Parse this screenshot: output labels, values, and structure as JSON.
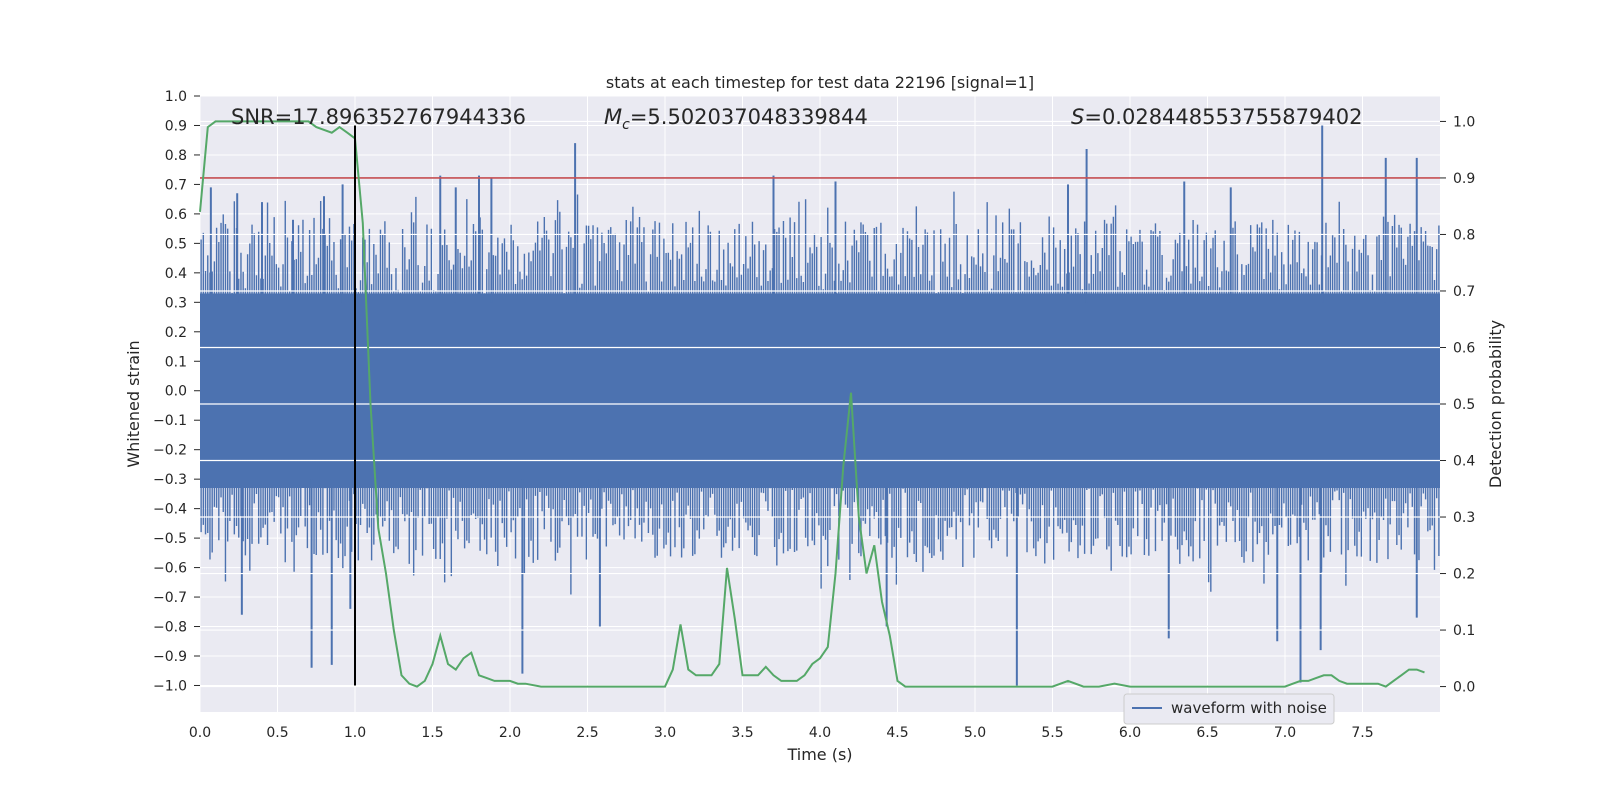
{
  "chart_data": {
    "type": "line",
    "title": "stats at each timestep for test data 22196 [signal=1]",
    "xlabel": "Time (s)",
    "ylabel": "Whitened strain",
    "y2label": "Detection probability",
    "xlim": [
      0.0,
      8.0
    ],
    "ylim": [
      -1.09,
      1.0
    ],
    "y2lim": [
      -0.045,
      1.045
    ],
    "xticks": [
      0.0,
      0.5,
      1.0,
      1.5,
      2.0,
      2.5,
      3.0,
      3.5,
      4.0,
      4.5,
      5.0,
      5.5,
      6.0,
      6.5,
      7.0,
      7.5
    ],
    "xtick_labels": [
      "0.0",
      "0.5",
      "1.0",
      "1.5",
      "2.0",
      "2.5",
      "3.0",
      "3.5",
      "4.0",
      "4.5",
      "5.0",
      "5.5",
      "6.0",
      "6.5",
      "7.0",
      "7.5"
    ],
    "yticks": [
      1.0,
      0.9,
      0.8,
      0.7,
      0.6,
      0.5,
      0.4,
      0.3,
      0.2,
      0.1,
      0.0,
      -0.1,
      -0.2,
      -0.3,
      -0.4,
      -0.5,
      -0.6,
      -0.7,
      -0.8,
      -0.9,
      -1.0
    ],
    "ytick_labels": [
      "1.0",
      "0.9",
      "0.8",
      "0.7",
      "0.6",
      "0.5",
      "0.4",
      "0.3",
      "0.2",
      "0.1",
      "0.0",
      "−0.1",
      "−0.2",
      "−0.3",
      "−0.4",
      "−0.5",
      "−0.6",
      "−0.7",
      "−0.8",
      "−0.9",
      "−1.0"
    ],
    "y2ticks": [
      1.0,
      0.9,
      0.8,
      0.7,
      0.6,
      0.5,
      0.4,
      0.3,
      0.2,
      0.1,
      0.0
    ],
    "y2tick_labels": [
      "1.0",
      "0.9",
      "0.8",
      "0.7",
      "0.6",
      "0.5",
      "0.4",
      "0.3",
      "0.2",
      "0.1",
      "0.0"
    ],
    "annotations": {
      "snr": "SNR=17.896352767944336",
      "mc_symbol": "M",
      "mc_sub": "c",
      "mc_value": "=5.502037048339844",
      "s_symbol": "S",
      "s_value": "=0.028448553755879402"
    },
    "threshold_line": {
      "axis": "y2",
      "value": 0.9,
      "color": "#c44e52"
    },
    "event_marker": {
      "x": 1.0,
      "ymin": -1.0,
      "ymax": 0.9,
      "color": "#000000"
    },
    "waveform": {
      "name": "waveform with noise",
      "color": "#4c72b0",
      "core_amplitude": 0.33,
      "spikes_up": [
        [
          0.07,
          0.69
        ],
        [
          0.24,
          0.67
        ],
        [
          0.4,
          0.64
        ],
        [
          0.6,
          0.58
        ],
        [
          0.8,
          0.66
        ],
        [
          0.92,
          0.7
        ],
        [
          1.55,
          0.73
        ],
        [
          1.65,
          0.69
        ],
        [
          1.8,
          0.73
        ],
        [
          1.88,
          0.72
        ],
        [
          2.42,
          0.84
        ],
        [
          3.7,
          0.73
        ],
        [
          4.1,
          0.71
        ],
        [
          5.6,
          0.7
        ],
        [
          5.72,
          0.82
        ],
        [
          6.35,
          0.71
        ],
        [
          6.65,
          0.69
        ],
        [
          7.24,
          0.9
        ],
        [
          7.65,
          0.79
        ],
        [
          7.85,
          0.79
        ]
      ],
      "spikes_down": [
        [
          0.27,
          -0.76
        ],
        [
          0.72,
          -0.94
        ],
        [
          0.85,
          -0.93
        ],
        [
          0.97,
          -0.74
        ],
        [
          2.08,
          -0.96
        ],
        [
          2.58,
          -0.8
        ],
        [
          4.43,
          -0.8
        ],
        [
          5.27,
          -1.0
        ],
        [
          6.25,
          -0.84
        ],
        [
          6.95,
          -0.85
        ],
        [
          7.1,
          -0.99
        ],
        [
          7.23,
          -0.88
        ],
        [
          7.85,
          -0.77
        ]
      ]
    },
    "detection_probability": {
      "name": "detection probability",
      "color": "#55a868",
      "x": [
        0.0,
        0.05,
        0.1,
        0.2,
        0.3,
        0.4,
        0.5,
        0.6,
        0.7,
        0.75,
        0.85,
        0.9,
        0.95,
        1.0,
        1.05,
        1.1,
        1.15,
        1.2,
        1.25,
        1.3,
        1.35,
        1.4,
        1.45,
        1.5,
        1.55,
        1.6,
        1.65,
        1.7,
        1.75,
        1.8,
        1.85,
        1.9,
        1.95,
        2.0,
        2.05,
        2.1,
        2.2,
        2.3,
        2.4,
        2.5,
        2.6,
        2.7,
        2.8,
        2.9,
        3.0,
        3.05,
        3.1,
        3.15,
        3.2,
        3.25,
        3.3,
        3.35,
        3.4,
        3.45,
        3.5,
        3.55,
        3.6,
        3.65,
        3.7,
        3.75,
        3.8,
        3.85,
        3.9,
        3.95,
        4.0,
        4.05,
        4.1,
        4.15,
        4.2,
        4.25,
        4.3,
        4.35,
        4.4,
        4.45,
        4.5,
        4.55,
        4.6,
        4.65,
        4.7,
        4.8,
        4.9,
        5.0,
        5.1,
        5.2,
        5.3,
        5.4,
        5.5,
        5.6,
        5.7,
        5.8,
        5.9,
        6.0,
        6.1,
        6.2,
        6.3,
        6.4,
        6.5,
        6.6,
        6.7,
        6.8,
        6.9,
        7.0,
        7.05,
        7.1,
        7.15,
        7.2,
        7.25,
        7.3,
        7.35,
        7.4,
        7.5,
        7.6,
        7.65,
        7.7,
        7.75,
        7.8,
        7.85,
        7.9
      ],
      "y": [
        0.84,
        0.99,
        1.0,
        1.0,
        1.0,
        1.0,
        1.0,
        1.0,
        1.0,
        0.99,
        0.98,
        0.99,
        0.98,
        0.97,
        0.82,
        0.5,
        0.28,
        0.2,
        0.1,
        0.02,
        0.005,
        0.0,
        0.01,
        0.04,
        0.09,
        0.04,
        0.03,
        0.05,
        0.06,
        0.02,
        0.015,
        0.01,
        0.01,
        0.01,
        0.005,
        0.005,
        0.0,
        0.0,
        0.0,
        0.0,
        0.0,
        0.0,
        0.0,
        0.0,
        0.0,
        0.03,
        0.11,
        0.03,
        0.02,
        0.02,
        0.02,
        0.04,
        0.21,
        0.12,
        0.02,
        0.02,
        0.02,
        0.035,
        0.02,
        0.01,
        0.01,
        0.01,
        0.02,
        0.04,
        0.05,
        0.07,
        0.2,
        0.39,
        0.52,
        0.3,
        0.2,
        0.25,
        0.15,
        0.09,
        0.01,
        0.0,
        0.0,
        0.0,
        0.0,
        0.0,
        0.0,
        0.0,
        0.0,
        0.0,
        0.0,
        0.0,
        0.0,
        0.01,
        0.0,
        0.0,
        0.005,
        0.0,
        0.0,
        0.0,
        0.0,
        0.0,
        0.0,
        0.0,
        0.0,
        0.0,
        0.0,
        0.0,
        0.005,
        0.01,
        0.01,
        0.015,
        0.02,
        0.02,
        0.01,
        0.005,
        0.005,
        0.005,
        0.0,
        0.01,
        0.02,
        0.03,
        0.03,
        0.025
      ]
    },
    "legend": {
      "placement": "lower-right",
      "entries": [
        "waveform with noise"
      ]
    }
  }
}
